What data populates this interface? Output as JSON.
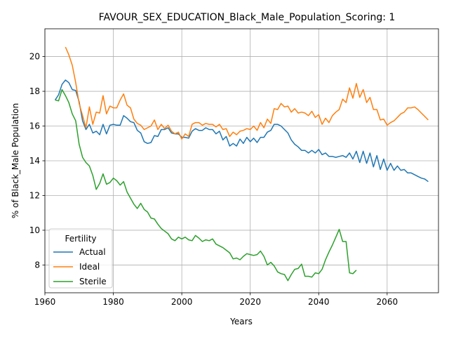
{
  "chart_data": {
    "type": "line",
    "title": "FAVOUR_SEX_EDUCATION_Black_Male_Population_Scoring: 1",
    "xlabel": "Years",
    "ylabel": "% of Black_Male Population",
    "xlim": [
      1960,
      2075
    ],
    "ylim": [
      6.4,
      21.6
    ],
    "xticks": [
      1960,
      1980,
      2000,
      2020,
      2040,
      2060
    ],
    "yticks": [
      8,
      10,
      12,
      14,
      16,
      18,
      20
    ],
    "grid": true,
    "legend": {
      "title": "Fertility",
      "position": "lower-left"
    },
    "series": [
      {
        "name": "Actual",
        "color": "#1f77b4",
        "points": [
          [
            1963,
            17.5
          ],
          [
            1964,
            17.8
          ],
          [
            1965,
            18.4
          ],
          [
            1966,
            18.65
          ],
          [
            1967,
            18.5
          ],
          [
            1968,
            18.1
          ],
          [
            1969,
            18.05
          ],
          [
            1970,
            17.4
          ],
          [
            1971,
            16.3
          ],
          [
            1972,
            15.8
          ],
          [
            1973,
            16.1
          ],
          [
            1974,
            15.6
          ],
          [
            1975,
            15.7
          ],
          [
            1976,
            15.5
          ],
          [
            1977,
            16.1
          ],
          [
            1978,
            15.55
          ],
          [
            1979,
            16.05
          ],
          [
            1980,
            16.1
          ],
          [
            1981,
            16.05
          ],
          [
            1982,
            16.05
          ],
          [
            1983,
            16.6
          ],
          [
            1984,
            16.45
          ],
          [
            1985,
            16.25
          ],
          [
            1986,
            16.2
          ],
          [
            1987,
            15.75
          ],
          [
            1988,
            15.6
          ],
          [
            1989,
            15.1
          ],
          [
            1990,
            15.0
          ],
          [
            1991,
            15.05
          ],
          [
            1992,
            15.45
          ],
          [
            1993,
            15.4
          ],
          [
            1994,
            15.8
          ],
          [
            1995,
            15.8
          ],
          [
            1996,
            15.9
          ],
          [
            1997,
            15.6
          ],
          [
            1998,
            15.55
          ],
          [
            1999,
            15.55
          ],
          [
            2000,
            15.35
          ],
          [
            2001,
            15.35
          ],
          [
            2002,
            15.3
          ],
          [
            2003,
            15.7
          ],
          [
            2004,
            15.85
          ],
          [
            2005,
            15.75
          ],
          [
            2006,
            15.75
          ],
          [
            2007,
            15.9
          ],
          [
            2008,
            15.8
          ],
          [
            2009,
            15.8
          ],
          [
            2010,
            15.55
          ],
          [
            2011,
            15.7
          ],
          [
            2012,
            15.2
          ],
          [
            2013,
            15.4
          ],
          [
            2014,
            14.85
          ],
          [
            2015,
            15.0
          ],
          [
            2016,
            14.85
          ],
          [
            2017,
            15.25
          ],
          [
            2018,
            15.0
          ],
          [
            2019,
            15.35
          ],
          [
            2020,
            15.1
          ],
          [
            2021,
            15.3
          ],
          [
            2022,
            15.05
          ],
          [
            2023,
            15.35
          ],
          [
            2024,
            15.35
          ],
          [
            2025,
            15.65
          ],
          [
            2026,
            15.75
          ],
          [
            2027,
            16.1
          ],
          [
            2028,
            16.1
          ],
          [
            2029,
            16.0
          ],
          [
            2030,
            15.8
          ],
          [
            2031,
            15.6
          ],
          [
            2032,
            15.2
          ],
          [
            2033,
            14.95
          ],
          [
            2034,
            14.8
          ],
          [
            2035,
            14.6
          ],
          [
            2036,
            14.6
          ],
          [
            2037,
            14.45
          ],
          [
            2038,
            14.6
          ],
          [
            2039,
            14.45
          ],
          [
            2040,
            14.65
          ],
          [
            2041,
            14.35
          ],
          [
            2042,
            14.45
          ],
          [
            2043,
            14.25
          ],
          [
            2044,
            14.25
          ],
          [
            2045,
            14.2
          ],
          [
            2046,
            14.25
          ],
          [
            2047,
            14.3
          ],
          [
            2048,
            14.2
          ],
          [
            2049,
            14.45
          ],
          [
            2050,
            14.1
          ],
          [
            2051,
            14.55
          ],
          [
            2052,
            13.9
          ],
          [
            2053,
            14.55
          ],
          [
            2054,
            13.85
          ],
          [
            2055,
            14.45
          ],
          [
            2056,
            13.65
          ],
          [
            2057,
            14.3
          ],
          [
            2058,
            13.5
          ],
          [
            2059,
            14.1
          ],
          [
            2060,
            13.45
          ],
          [
            2061,
            13.85
          ],
          [
            2062,
            13.45
          ],
          [
            2063,
            13.7
          ],
          [
            2064,
            13.45
          ],
          [
            2065,
            13.5
          ],
          [
            2066,
            13.3
          ],
          [
            2067,
            13.3
          ],
          [
            2068,
            13.2
          ],
          [
            2069,
            13.1
          ],
          [
            2070,
            13.0
          ],
          [
            2071,
            12.95
          ],
          [
            2072,
            12.8
          ]
        ]
      },
      {
        "name": "Ideal",
        "color": "#ff7f0e",
        "points": [
          [
            1966,
            20.55
          ],
          [
            1967,
            20.1
          ],
          [
            1968,
            19.5
          ],
          [
            1969,
            18.5
          ],
          [
            1970,
            17.3
          ],
          [
            1971,
            16.6
          ],
          [
            1972,
            15.9
          ],
          [
            1973,
            17.1
          ],
          [
            1974,
            16.1
          ],
          [
            1975,
            16.8
          ],
          [
            1976,
            16.75
          ],
          [
            1977,
            17.75
          ],
          [
            1978,
            16.7
          ],
          [
            1979,
            17.15
          ],
          [
            1980,
            17.05
          ],
          [
            1981,
            17.05
          ],
          [
            1982,
            17.5
          ],
          [
            1983,
            17.85
          ],
          [
            1984,
            17.2
          ],
          [
            1985,
            17.05
          ],
          [
            1986,
            16.4
          ],
          [
            1987,
            16.15
          ],
          [
            1988,
            16.05
          ],
          [
            1989,
            15.8
          ],
          [
            1990,
            15.9
          ],
          [
            1991,
            16.0
          ],
          [
            1992,
            16.35
          ],
          [
            1993,
            15.8
          ],
          [
            1994,
            16.1
          ],
          [
            1995,
            15.85
          ],
          [
            1996,
            16.05
          ],
          [
            1997,
            15.7
          ],
          [
            1998,
            15.55
          ],
          [
            1999,
            15.65
          ],
          [
            2000,
            15.25
          ],
          [
            2001,
            15.55
          ],
          [
            2002,
            15.4
          ],
          [
            2003,
            16.1
          ],
          [
            2004,
            16.2
          ],
          [
            2005,
            16.2
          ],
          [
            2006,
            16.05
          ],
          [
            2007,
            16.15
          ],
          [
            2008,
            16.1
          ],
          [
            2009,
            16.1
          ],
          [
            2010,
            15.95
          ],
          [
            2011,
            16.1
          ],
          [
            2012,
            15.8
          ],
          [
            2013,
            15.85
          ],
          [
            2014,
            15.4
          ],
          [
            2015,
            15.65
          ],
          [
            2016,
            15.5
          ],
          [
            2017,
            15.7
          ],
          [
            2018,
            15.75
          ],
          [
            2019,
            15.85
          ],
          [
            2020,
            15.8
          ],
          [
            2021,
            16.0
          ],
          [
            2022,
            15.75
          ],
          [
            2023,
            16.2
          ],
          [
            2024,
            15.9
          ],
          [
            2025,
            16.4
          ],
          [
            2026,
            16.15
          ],
          [
            2027,
            17.0
          ],
          [
            2028,
            16.95
          ],
          [
            2029,
            17.3
          ],
          [
            2030,
            17.1
          ],
          [
            2031,
            17.15
          ],
          [
            2032,
            16.8
          ],
          [
            2033,
            17.0
          ],
          [
            2034,
            16.75
          ],
          [
            2035,
            16.8
          ],
          [
            2036,
            16.75
          ],
          [
            2037,
            16.6
          ],
          [
            2038,
            16.85
          ],
          [
            2039,
            16.5
          ],
          [
            2040,
            16.65
          ],
          [
            2041,
            16.1
          ],
          [
            2042,
            16.45
          ],
          [
            2043,
            16.2
          ],
          [
            2044,
            16.6
          ],
          [
            2045,
            16.8
          ],
          [
            2046,
            16.95
          ],
          [
            2047,
            17.55
          ],
          [
            2048,
            17.35
          ],
          [
            2049,
            18.2
          ],
          [
            2050,
            17.6
          ],
          [
            2051,
            18.45
          ],
          [
            2052,
            17.65
          ],
          [
            2053,
            18.1
          ],
          [
            2054,
            17.35
          ],
          [
            2055,
            17.65
          ],
          [
            2056,
            16.95
          ],
          [
            2057,
            16.95
          ],
          [
            2058,
            16.35
          ],
          [
            2059,
            16.4
          ],
          [
            2060,
            16.05
          ],
          [
            2061,
            16.2
          ],
          [
            2062,
            16.3
          ],
          [
            2063,
            16.5
          ],
          [
            2064,
            16.7
          ],
          [
            2065,
            16.8
          ],
          [
            2066,
            17.05
          ],
          [
            2067,
            17.05
          ],
          [
            2068,
            17.1
          ],
          [
            2069,
            16.95
          ],
          [
            2070,
            16.75
          ],
          [
            2071,
            16.55
          ],
          [
            2072,
            16.35
          ]
        ]
      },
      {
        "name": "Sterile",
        "color": "#2ca02c",
        "points": [
          [
            1963,
            17.5
          ],
          [
            1964,
            17.45
          ],
          [
            1965,
            18.1
          ],
          [
            1966,
            17.75
          ],
          [
            1967,
            17.35
          ],
          [
            1968,
            16.7
          ],
          [
            1969,
            16.3
          ],
          [
            1970,
            14.95
          ],
          [
            1971,
            14.2
          ],
          [
            1972,
            13.9
          ],
          [
            1973,
            13.7
          ],
          [
            1974,
            13.15
          ],
          [
            1975,
            12.35
          ],
          [
            1976,
            12.7
          ],
          [
            1977,
            13.25
          ],
          [
            1978,
            12.65
          ],
          [
            1979,
            12.75
          ],
          [
            1980,
            13.0
          ],
          [
            1981,
            12.85
          ],
          [
            1982,
            12.6
          ],
          [
            1983,
            12.8
          ],
          [
            1984,
            12.2
          ],
          [
            1985,
            11.85
          ],
          [
            1986,
            11.5
          ],
          [
            1987,
            11.25
          ],
          [
            1988,
            11.55
          ],
          [
            1989,
            11.2
          ],
          [
            1990,
            11.05
          ],
          [
            1991,
            10.7
          ],
          [
            1992,
            10.65
          ],
          [
            1993,
            10.35
          ],
          [
            1994,
            10.1
          ],
          [
            1995,
            9.95
          ],
          [
            1996,
            9.8
          ],
          [
            1997,
            9.5
          ],
          [
            1998,
            9.4
          ],
          [
            1999,
            9.6
          ],
          [
            2000,
            9.5
          ],
          [
            2001,
            9.6
          ],
          [
            2002,
            9.45
          ],
          [
            2003,
            9.4
          ],
          [
            2004,
            9.7
          ],
          [
            2005,
            9.55
          ],
          [
            2006,
            9.35
          ],
          [
            2007,
            9.45
          ],
          [
            2008,
            9.4
          ],
          [
            2009,
            9.5
          ],
          [
            2010,
            9.2
          ],
          [
            2011,
            9.1
          ],
          [
            2012,
            9.0
          ],
          [
            2013,
            8.85
          ],
          [
            2014,
            8.7
          ],
          [
            2015,
            8.35
          ],
          [
            2016,
            8.4
          ],
          [
            2017,
            8.3
          ],
          [
            2018,
            8.5
          ],
          [
            2019,
            8.65
          ],
          [
            2020,
            8.6
          ],
          [
            2021,
            8.55
          ],
          [
            2022,
            8.6
          ],
          [
            2023,
            8.8
          ],
          [
            2024,
            8.5
          ],
          [
            2025,
            8.0
          ],
          [
            2026,
            8.15
          ],
          [
            2027,
            7.95
          ],
          [
            2028,
            7.6
          ],
          [
            2029,
            7.5
          ],
          [
            2030,
            7.45
          ],
          [
            2031,
            7.1
          ],
          [
            2032,
            7.45
          ],
          [
            2033,
            7.75
          ],
          [
            2034,
            7.8
          ],
          [
            2035,
            8.05
          ],
          [
            2036,
            7.35
          ],
          [
            2037,
            7.35
          ],
          [
            2038,
            7.3
          ],
          [
            2039,
            7.55
          ],
          [
            2040,
            7.5
          ],
          [
            2041,
            7.75
          ],
          [
            2042,
            8.3
          ],
          [
            2043,
            8.75
          ],
          [
            2044,
            9.15
          ],
          [
            2045,
            9.6
          ],
          [
            2046,
            10.05
          ],
          [
            2047,
            9.35
          ],
          [
            2048,
            9.35
          ],
          [
            2049,
            7.55
          ],
          [
            2050,
            7.5
          ],
          [
            2051,
            7.7
          ]
        ]
      }
    ]
  }
}
